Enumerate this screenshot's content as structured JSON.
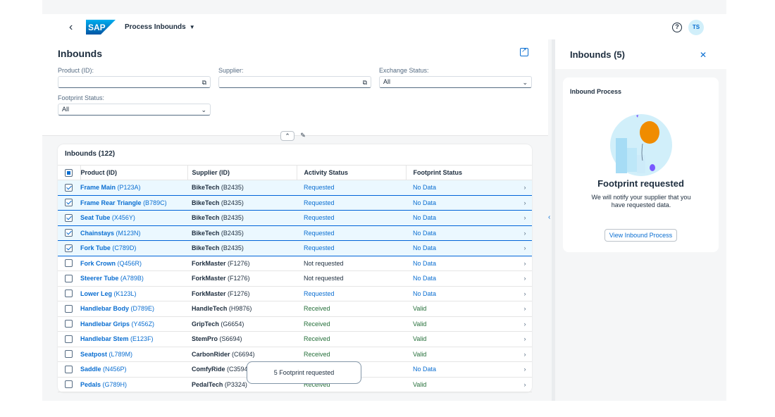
{
  "shell": {
    "app_title": "Process Inbounds",
    "logo_text": "SAP",
    "avatar_initials": "TS",
    "help_glyph": "?"
  },
  "filters": {
    "page_title": "Inbounds",
    "product_label": "Product (ID):",
    "supplier_label": "Supplier:",
    "exchange_label": "Exchange Status:",
    "exchange_value": "All",
    "footprint_label": "Footprint Status:",
    "footprint_value": "All"
  },
  "table": {
    "title": "Inbounds (122)",
    "columns": [
      "Product (ID)",
      "Supplier (ID)",
      "Activity Status",
      "Footprint Status"
    ],
    "rows": [
      {
        "product": "Frame Main",
        "pid": "(P123A)",
        "supplier": "BikeTech",
        "sid": "(B2435)",
        "activity": "Requested",
        "footprint": "No Data",
        "selected": true
      },
      {
        "product": "Frame Rear Triangle",
        "pid": "(B789C)",
        "supplier": "BikeTech",
        "sid": "(B2435)",
        "activity": "Requested",
        "footprint": "No Data",
        "selected": true
      },
      {
        "product": "Seat Tube",
        "pid": "(X456Y)",
        "supplier": "BikeTech",
        "sid": "(B2435)",
        "activity": "Requested",
        "footprint": "No Data",
        "selected": true
      },
      {
        "product": "Chainstays",
        "pid": "(M123N)",
        "supplier": "BikeTech",
        "sid": "(B2435)",
        "activity": "Requested",
        "footprint": "No Data",
        "selected": true
      },
      {
        "product": "Fork Tube",
        "pid": "(C789D)",
        "supplier": "BikeTech",
        "sid": "(B2435)",
        "activity": "Requested",
        "footprint": "No Data",
        "selected": true
      },
      {
        "product": "Fork Crown",
        "pid": "(Q456R)",
        "supplier": "ForkMaster",
        "sid": "(F1276)",
        "activity": "Not requested",
        "footprint": "No Data",
        "selected": false
      },
      {
        "product": "Steerer Tube",
        "pid": "(A789B)",
        "supplier": "ForkMaster",
        "sid": "(F1276)",
        "activity": "Not requested",
        "footprint": "No Data",
        "selected": false
      },
      {
        "product": "Lower Leg",
        "pid": "(K123L)",
        "supplier": "ForkMaster",
        "sid": "(F1276)",
        "activity": "Requested",
        "footprint": "No Data",
        "selected": false
      },
      {
        "product": "Handlebar Body",
        "pid": "(D789E)",
        "supplier": "HandleTech",
        "sid": "(H9876)",
        "activity": "Received",
        "footprint": "Valid",
        "selected": false
      },
      {
        "product": "Handlebar Grips",
        "pid": "(Y456Z)",
        "supplier": "GripTech",
        "sid": "(G6654)",
        "activity": "Received",
        "footprint": "Valid",
        "selected": false
      },
      {
        "product": "Handlebar Stem",
        "pid": "(E123F)",
        "supplier": "StemPro",
        "sid": "(S6694)",
        "activity": "Received",
        "footprint": "Valid",
        "selected": false
      },
      {
        "product": "Seatpost",
        "pid": "(L789M)",
        "supplier": "CarbonRider",
        "sid": "(C6694)",
        "activity": "Received",
        "footprint": "Valid",
        "selected": false
      },
      {
        "product": "Saddle",
        "pid": "(N456P)",
        "supplier": "ComfyRide",
        "sid": "(C3594)",
        "activity": "",
        "footprint": "No Data",
        "selected": false
      },
      {
        "product": "Pedals",
        "pid": "(G789H)",
        "supplier": "PedalTech",
        "sid": "(P3324)",
        "activity": "Received",
        "footprint": "Valid",
        "selected": false
      }
    ]
  },
  "toast": {
    "message": "5 Footprint requested"
  },
  "side_panel": {
    "title": "Inbounds (5)",
    "card_title": "Inbound Process",
    "status_title": "Footprint requested",
    "status_desc": "We will notify your supplier that you have requested data.",
    "button_label": "View Inbound Process"
  },
  "colors": {
    "accent": "#0a6ed1",
    "valid": "#256f3a",
    "selected_row": "#ebf8ff",
    "balloon": "#f08c00"
  },
  "icons": [
    "back-icon",
    "caret-down-icon",
    "help-icon",
    "share-icon",
    "value-help-icon",
    "chevron-down-icon",
    "collapse-icon",
    "pin-icon",
    "chevron-right-icon",
    "close-icon",
    "chevron-left-icon"
  ]
}
